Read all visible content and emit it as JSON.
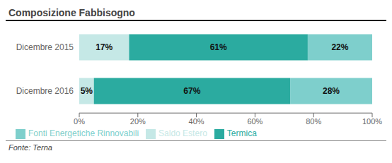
{
  "chart_data": {
    "type": "bar",
    "title": "Composizione Fabbisogno",
    "orientation": "horizontal",
    "stacked": true,
    "data_labels": true,
    "grid": false,
    "legend": "bottom",
    "categories": [
      "Dicembre 2016",
      "Dicembre 2015"
    ],
    "series": [
      {
        "name": "Saldo Estero",
        "color": "#c5e8e6",
        "values": [
          5,
          17
        ],
        "value_labels": [
          "5%",
          "17%"
        ]
      },
      {
        "name": "Termica",
        "color": "#2baba0",
        "values": [
          67,
          61
        ],
        "value_labels": [
          "67%",
          "61%"
        ]
      },
      {
        "name": "Fonti Energetiche Rinnovabili",
        "color": "#7ecfcc",
        "values": [
          28,
          22
        ],
        "value_labels": [
          "28%",
          "22%"
        ]
      }
    ],
    "xlim": [
      0,
      100
    ],
    "xticks": [
      {
        "value": 0,
        "label": "0%"
      },
      {
        "value": 20,
        "label": "20%"
      },
      {
        "value": 40,
        "label": "40%"
      },
      {
        "value": 60,
        "label": "60%"
      },
      {
        "value": 80,
        "label": "80%"
      },
      {
        "value": 100,
        "label": "100%"
      }
    ],
    "annotations": [
      "Fonte: Terna"
    ]
  }
}
